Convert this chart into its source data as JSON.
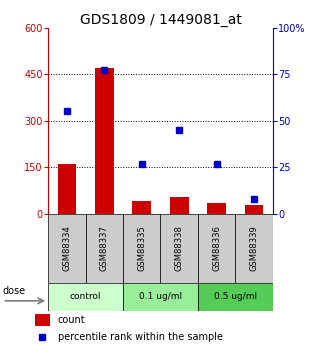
{
  "title": "GDS1809 / 1449081_at",
  "samples": [
    "GSM88334",
    "GSM88337",
    "GSM88335",
    "GSM88338",
    "GSM88336",
    "GSM88339"
  ],
  "counts": [
    160,
    470,
    40,
    55,
    35,
    30
  ],
  "percentiles": [
    55,
    77,
    27,
    45,
    27,
    8
  ],
  "groups": [
    {
      "label": "control",
      "color": "#ccffcc",
      "start": 0,
      "end": 1
    },
    {
      "label": "0.1 ug/ml",
      "color": "#99ee99",
      "start": 2,
      "end": 3
    },
    {
      "label": "0.5 ug/ml",
      "color": "#55cc55",
      "start": 4,
      "end": 5
    }
  ],
  "bar_color": "#cc0000",
  "dot_color": "#0000cc",
  "left_ylim": [
    0,
    600
  ],
  "right_ylim": [
    0,
    100
  ],
  "left_yticks": [
    0,
    150,
    300,
    450,
    600
  ],
  "left_yticklabels": [
    "0",
    "150",
    "300",
    "450",
    "600"
  ],
  "right_yticks": [
    0,
    25,
    50,
    75,
    100
  ],
  "right_yticklabels": [
    "0",
    "25",
    "50",
    "75",
    "100%"
  ],
  "grid_values": [
    150,
    300,
    450
  ],
  "left_axis_color": "#cc0000",
  "right_axis_color": "#0000cc",
  "sample_box_color": "#cccccc",
  "dose_label": "dose",
  "legend_count": "count",
  "legend_percentile": "percentile rank within the sample",
  "title_fontsize": 10,
  "tick_fontsize": 7,
  "label_fontsize": 7
}
